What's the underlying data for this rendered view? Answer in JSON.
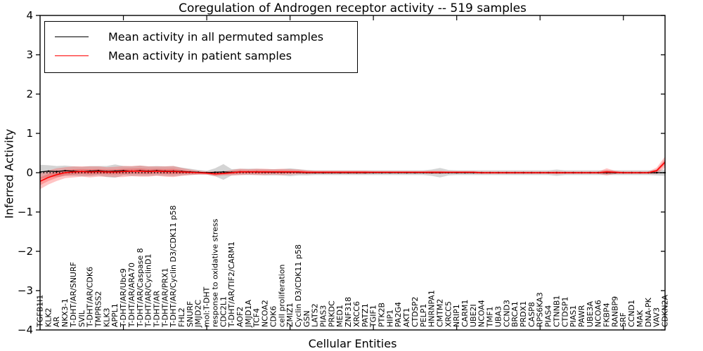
{
  "chart_data": {
    "type": "line",
    "title": "Coregulation of Androgen receptor activity -- 519 samples",
    "xlabel": "Cellular Entities",
    "ylabel": "Inferred Activity",
    "ylim": [
      -4,
      4
    ],
    "yticks": [
      -4,
      -3,
      -2,
      -1,
      0,
      1,
      2,
      3,
      4
    ],
    "legend_position": "upper left",
    "grid": false,
    "zero_line": true,
    "categories": [
      "TGFB1I1",
      "KLK2",
      "AR",
      "NKX3-1",
      "T-DHT/AR/SNURF",
      "SVIL",
      "T-DHT/AR/CDK6",
      "TMPRSS2",
      "KLK3",
      "APPL1",
      "T-DHT/AR/Ubc9",
      "T-DHT/AR/ARA70",
      "T-DHT/AR/Caspase 8",
      "T-DHT/AR/CyclinD1",
      "T-DHT/AR",
      "T-DHT/AR/PRX1",
      "T-DHT/AR/Cyclin D3/CDK11 p58",
      "FHL2",
      "SNURF",
      "JMJD2C",
      "mol:T-DHT",
      "response to oxidative stress",
      "CDC2L1",
      "T-DHT/AR/TIF2/CARM1",
      "AOF2",
      "JMJD1A",
      "TCF4",
      "NCOA2",
      "CDK6",
      "cell proliferation",
      "ZMIZ1",
      "Cyclin D3/CDK11 p58",
      "GSN",
      "LATS2",
      "PIAS3",
      "PRKDC",
      "MED1",
      "ZNF318",
      "XRCC6",
      "PATZ1",
      "TGIF1",
      "PTK2B",
      "HIP1",
      "PA2G4",
      "AKT1",
      "CTDSP2",
      "PELP1",
      "HNRNPA1",
      "CMTM2",
      "XRCC5",
      "NRIP1",
      "CARM1",
      "UBE2I",
      "NCOA4",
      "TMF1",
      "UBA3",
      "CCND3",
      "BRCA1",
      "PRDX1",
      "CASP8",
      "RPS6KA3",
      "PIAS4",
      "CTNNB1",
      "CTDSP1",
      "PIAS1",
      "PAWR",
      "UBE3A",
      "NCOA6",
      "FKBP4",
      "RANBP9",
      "SRF",
      "CCND1",
      "MAK",
      "DNA-PK",
      "VAV3",
      "CDKN2A"
    ],
    "series": [
      {
        "name": "Mean activity in all permuted samples",
        "color": "#000000",
        "band_color": "#aaaaaa",
        "values": [
          0.02,
          0.04,
          0.03,
          0.05,
          0.04,
          0.03,
          0.04,
          0.05,
          0.03,
          0.04,
          0.05,
          0.04,
          0.05,
          0.04,
          0.05,
          0.04,
          0.04,
          0.03,
          0.02,
          0.01,
          0.0,
          0.01,
          0.02,
          0.01,
          0.02,
          0.02,
          0.02,
          0.01,
          0.01,
          0.01,
          0.01,
          0.01,
          0.0,
          0.0,
          0.0,
          0.0,
          0.0,
          0.0,
          0.0,
          0.0,
          0.0,
          0.0,
          0.0,
          0.0,
          0.0,
          0.0,
          0.0,
          0.0,
          0.0,
          0.0,
          0.0,
          0.0,
          0.0,
          0.0,
          0.0,
          0.0,
          0.0,
          0.0,
          0.0,
          0.0,
          0.0,
          0.0,
          0.0,
          0.0,
          0.0,
          0.0,
          0.0,
          0.0,
          0.0,
          0.0,
          0.0,
          0.0,
          0.0,
          0.0,
          0.0,
          0.0
        ],
        "band": [
          0.18,
          0.15,
          0.14,
          0.13,
          0.12,
          0.12,
          0.13,
          0.12,
          0.14,
          0.17,
          0.12,
          0.12,
          0.13,
          0.12,
          0.12,
          0.12,
          0.13,
          0.1,
          0.08,
          0.06,
          0.05,
          0.1,
          0.2,
          0.08,
          0.08,
          0.08,
          0.08,
          0.08,
          0.08,
          0.08,
          0.1,
          0.08,
          0.07,
          0.06,
          0.06,
          0.06,
          0.06,
          0.06,
          0.06,
          0.06,
          0.06,
          0.06,
          0.06,
          0.06,
          0.06,
          0.06,
          0.06,
          0.08,
          0.12,
          0.07,
          0.06,
          0.06,
          0.06,
          0.06,
          0.06,
          0.06,
          0.06,
          0.06,
          0.06,
          0.06,
          0.06,
          0.06,
          0.08,
          0.06,
          0.06,
          0.06,
          0.06,
          0.06,
          0.06,
          0.06,
          0.06,
          0.06,
          0.06,
          0.06,
          0.07,
          0.08
        ]
      },
      {
        "name": "Mean activity in patient samples",
        "color": "#ff0000",
        "band_color": "#ff2a2a",
        "values": [
          -0.22,
          -0.12,
          -0.05,
          0.0,
          0.02,
          0.03,
          0.02,
          0.03,
          0.02,
          0.02,
          0.03,
          0.04,
          0.04,
          0.03,
          0.04,
          0.03,
          0.03,
          0.02,
          0.01,
          0.0,
          -0.01,
          -0.03,
          -0.02,
          0.0,
          0.02,
          0.02,
          0.02,
          0.02,
          0.02,
          0.02,
          0.02,
          0.02,
          0.01,
          0.01,
          0.01,
          0.01,
          0.01,
          0.01,
          0.01,
          0.01,
          0.01,
          0.01,
          0.01,
          0.01,
          0.01,
          0.01,
          0.01,
          0.01,
          0.01,
          0.01,
          0.01,
          0.01,
          0.01,
          0.0,
          0.0,
          0.0,
          0.0,
          0.0,
          0.0,
          0.0,
          0.0,
          0.0,
          0.0,
          0.0,
          0.0,
          0.0,
          0.0,
          0.0,
          0.02,
          0.01,
          0.0,
          0.0,
          0.0,
          0.0,
          0.05,
          0.27
        ],
        "band": [
          0.2,
          0.18,
          0.16,
          0.14,
          0.14,
          0.13,
          0.14,
          0.13,
          0.12,
          0.13,
          0.14,
          0.13,
          0.14,
          0.13,
          0.12,
          0.13,
          0.14,
          0.1,
          0.07,
          0.05,
          0.04,
          0.06,
          0.05,
          0.07,
          0.08,
          0.07,
          0.08,
          0.08,
          0.07,
          0.08,
          0.07,
          0.06,
          0.05,
          0.04,
          0.04,
          0.04,
          0.04,
          0.04,
          0.04,
          0.04,
          0.03,
          0.03,
          0.03,
          0.03,
          0.03,
          0.03,
          0.03,
          0.04,
          0.04,
          0.03,
          0.03,
          0.03,
          0.03,
          0.03,
          0.03,
          0.03,
          0.03,
          0.03,
          0.03,
          0.03,
          0.03,
          0.03,
          0.04,
          0.03,
          0.03,
          0.03,
          0.03,
          0.03,
          0.09,
          0.04,
          0.03,
          0.03,
          0.03,
          0.03,
          0.08,
          0.14
        ]
      }
    ]
  },
  "legend": {
    "items": [
      {
        "label": "Mean activity in all permuted samples",
        "color": "#000000"
      },
      {
        "label": "Mean activity in patient samples",
        "color": "#ff0000"
      }
    ]
  }
}
